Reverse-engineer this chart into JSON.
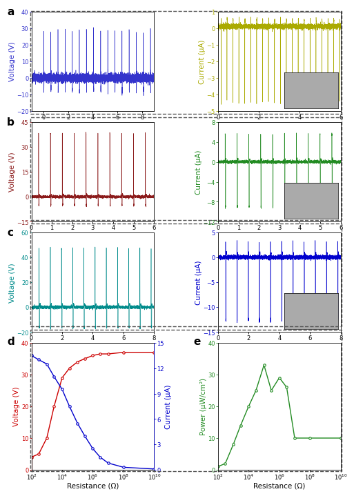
{
  "panel_a": {
    "voltage_color": "#3333cc",
    "voltage_ylim": [
      -20,
      40
    ],
    "voltage_yticks": [
      -20,
      -10,
      0,
      10,
      20,
      30,
      40
    ],
    "voltage_xlim": [
      -1,
      9
    ],
    "voltage_xticks": [
      0,
      2,
      4,
      6,
      8
    ],
    "current_color": "#aaaa00",
    "current_ylim": [
      -5,
      1
    ],
    "current_yticks": [
      -5,
      -4,
      -3,
      -2,
      -1,
      0,
      1
    ],
    "current_xlim": [
      0,
      6
    ],
    "current_xticks": [
      0,
      2,
      4,
      6
    ]
  },
  "panel_b": {
    "voltage_color": "#8b1a1a",
    "voltage_ylim": [
      -15,
      45
    ],
    "voltage_yticks": [
      -15,
      0,
      15,
      30,
      45
    ],
    "voltage_xlim": [
      0,
      6
    ],
    "voltage_xticks": [
      0,
      1,
      2,
      3,
      4,
      5,
      6
    ],
    "current_color": "#228b22",
    "current_ylim": [
      -12,
      8
    ],
    "current_yticks": [
      -12,
      -8,
      -4,
      0,
      4,
      8
    ],
    "current_xlim": [
      0,
      6
    ],
    "current_xticks": [
      0,
      1,
      2,
      3,
      4,
      5,
      6
    ]
  },
  "panel_c": {
    "voltage_color": "#008b8b",
    "voltage_ylim": [
      -20,
      60
    ],
    "voltage_yticks": [
      -20,
      0,
      20,
      40,
      60
    ],
    "voltage_xlim": [
      0,
      8
    ],
    "voltage_xticks": [
      0,
      2,
      4,
      6,
      8
    ],
    "current_color": "#0000cd",
    "current_ylim": [
      -15,
      5
    ],
    "current_yticks": [
      -15,
      -10,
      -5,
      0,
      5
    ],
    "current_xlim": [
      0,
      8
    ],
    "current_xticks": [
      0,
      2,
      4,
      6,
      8
    ]
  },
  "panel_d": {
    "resistance": [
      100,
      300,
      1000,
      3000,
      10000,
      30000,
      100000,
      300000,
      1000000,
      3000000,
      10000000,
      100000000,
      10000000000
    ],
    "voltage": [
      4,
      5,
      10,
      20,
      29,
      32,
      34,
      35,
      36,
      36.5,
      36.5,
      37,
      37
    ],
    "current": [
      13.5,
      13,
      12.5,
      11,
      9.5,
      7.5,
      5.5,
      4,
      2.5,
      1.5,
      0.8,
      0.3,
      0.1
    ],
    "voltage_color": "#cc0000",
    "current_color": "#0000cc",
    "xlim": [
      100,
      10000000000
    ],
    "voltage_ylim": [
      0,
      40
    ],
    "voltage_yticks": [
      0,
      10,
      20,
      30,
      40
    ],
    "current_ylim": [
      0,
      15
    ],
    "current_yticks": [
      0,
      3,
      6,
      9,
      12,
      15
    ]
  },
  "panel_e": {
    "resistance": [
      100,
      300,
      1000,
      3000,
      10000,
      30000,
      100000,
      300000,
      1000000,
      3000000,
      10000000,
      100000000,
      10000000000
    ],
    "power": [
      1,
      2,
      8,
      14,
      20,
      25,
      33,
      25,
      29,
      26,
      10,
      10,
      10
    ],
    "color": "#228b22",
    "xlim": [
      100,
      10000000000
    ],
    "ylim": [
      0,
      40
    ],
    "yticks": [
      0,
      10,
      20,
      30,
      40
    ]
  },
  "border_color": "#555555",
  "label_fontsize": 10,
  "tick_fontsize": 6,
  "axis_label_fontsize": 7.5
}
